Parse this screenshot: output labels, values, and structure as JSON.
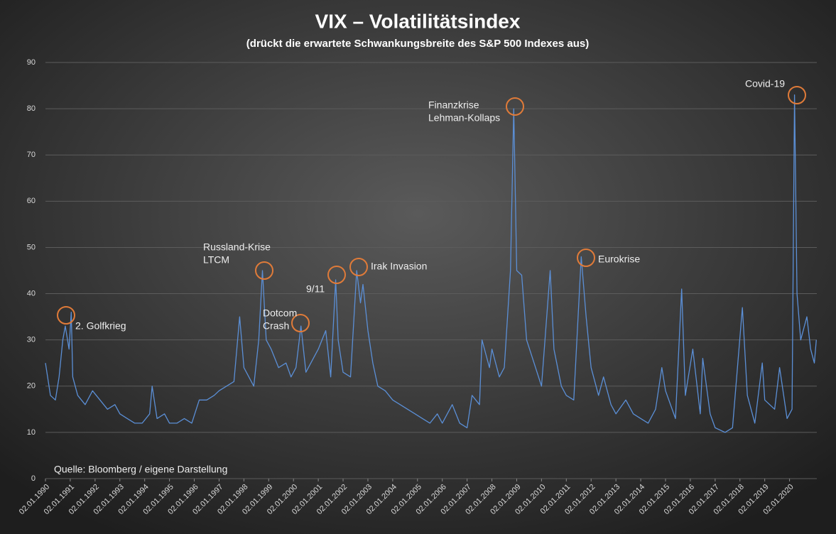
{
  "chart_data": {
    "type": "line",
    "title": "VIX – Volatilitätsindex",
    "subtitle": "(drückt die erwartete Schwankungsbreite des S&P 500 Indexes aus)",
    "source": "Quelle: Bloomberg / eigene Darstellung",
    "color": "#5b8fd6",
    "grid": true,
    "ylim": [
      0,
      90
    ],
    "yticks": [
      0,
      10,
      20,
      30,
      40,
      50,
      60,
      70,
      80,
      90
    ],
    "xlim": [
      1990,
      2021.1
    ],
    "xticks": [
      {
        "value": 1990,
        "label": "02.01.1990"
      },
      {
        "value": 1991,
        "label": "02.01.1991"
      },
      {
        "value": 1992,
        "label": "02.01.1992"
      },
      {
        "value": 1993,
        "label": "02.01.1993"
      },
      {
        "value": 1994,
        "label": "02.01.1994"
      },
      {
        "value": 1995,
        "label": "02.01.1995"
      },
      {
        "value": 1996,
        "label": "02.01.1996"
      },
      {
        "value": 1997,
        "label": "02.01.1997"
      },
      {
        "value": 1998,
        "label": "02.01.1998"
      },
      {
        "value": 1999,
        "label": "02.01.1999"
      },
      {
        "value": 2000,
        "label": "02.01.2000"
      },
      {
        "value": 2001,
        "label": "02.01.2001"
      },
      {
        "value": 2002,
        "label": "02.01.2002"
      },
      {
        "value": 2003,
        "label": "02.01.2003"
      },
      {
        "value": 2004,
        "label": "02.01.2004"
      },
      {
        "value": 2005,
        "label": "02.01.2005"
      },
      {
        "value": 2006,
        "label": "02.01.2006"
      },
      {
        "value": 2007,
        "label": "02.01.2007"
      },
      {
        "value": 2008,
        "label": "02.01.2008"
      },
      {
        "value": 2009,
        "label": "02.01.2009"
      },
      {
        "value": 2010,
        "label": "02.01.2010"
      },
      {
        "value": 2011,
        "label": "02.01.2011"
      },
      {
        "value": 2012,
        "label": "02.01.2012"
      },
      {
        "value": 2013,
        "label": "02.01.2013"
      },
      {
        "value": 2014,
        "label": "02.01.2014"
      },
      {
        "value": 2015,
        "label": "02.01.2015"
      },
      {
        "value": 2016,
        "label": "02.01.2016"
      },
      {
        "value": 2017,
        "label": "02.01.2017"
      },
      {
        "value": 2018,
        "label": "02.01.2018"
      },
      {
        "value": 2019,
        "label": "02.01.2019"
      },
      {
        "value": 2020,
        "label": "02.01.2020"
      }
    ],
    "x": [
      1990.0,
      1990.2,
      1990.4,
      1990.55,
      1990.7,
      1990.8,
      1990.95,
      1991.04,
      1991.1,
      1991.3,
      1991.6,
      1991.9,
      1992.2,
      1992.5,
      1992.8,
      1993.0,
      1993.3,
      1993.6,
      1993.9,
      1994.2,
      1994.3,
      1994.5,
      1994.8,
      1995.0,
      1995.3,
      1995.6,
      1995.9,
      1996.2,
      1996.5,
      1996.8,
      1997.0,
      1997.3,
      1997.6,
      1997.83,
      1998.0,
      1998.4,
      1998.6,
      1998.75,
      1998.9,
      1999.1,
      1999.4,
      1999.7,
      1999.9,
      2000.1,
      2000.3,
      2000.5,
      2000.8,
      2001.0,
      2001.3,
      2001.5,
      2001.7,
      2001.8,
      2002.0,
      2002.3,
      2002.55,
      2002.7,
      2002.8,
      2003.0,
      2003.2,
      2003.4,
      2003.7,
      2004.0,
      2004.3,
      2004.6,
      2004.9,
      2005.2,
      2005.5,
      2005.8,
      2006.0,
      2006.4,
      2006.7,
      2007.0,
      2007.2,
      2007.5,
      2007.6,
      2007.9,
      2008.0,
      2008.3,
      2008.5,
      2008.75,
      2008.88,
      2009.0,
      2009.2,
      2009.4,
      2009.7,
      2010.0,
      2010.35,
      2010.5,
      2010.8,
      2011.0,
      2011.3,
      2011.6,
      2011.8,
      2012.0,
      2012.3,
      2012.5,
      2012.8,
      2013.0,
      2013.4,
      2013.7,
      2014.0,
      2014.3,
      2014.6,
      2014.85,
      2015.0,
      2015.4,
      2015.65,
      2015.8,
      2016.1,
      2016.4,
      2016.5,
      2016.8,
      2017.0,
      2017.4,
      2017.7,
      2018.1,
      2018.3,
      2018.6,
      2018.9,
      2019.0,
      2019.4,
      2019.6,
      2019.9,
      2020.1,
      2020.2,
      2020.3,
      2020.45,
      2020.7,
      2020.85,
      2021.0,
      2021.08
    ],
    "values": [
      25,
      18,
      17,
      22,
      30,
      33,
      28,
      36,
      22,
      18,
      16,
      19,
      17,
      15,
      16,
      14,
      13,
      12,
      12,
      14,
      20,
      13,
      14,
      12,
      12,
      13,
      12,
      17,
      17,
      18,
      19,
      20,
      21,
      35,
      24,
      20,
      30,
      45,
      30,
      28,
      24,
      25,
      22,
      24,
      33,
      23,
      26,
      28,
      32,
      22,
      43,
      30,
      23,
      22,
      45,
      38,
      42,
      32,
      25,
      20,
      19,
      17,
      16,
      15,
      14,
      13,
      12,
      14,
      12,
      16,
      12,
      11,
      18,
      16,
      30,
      24,
      28,
      22,
      24,
      45,
      80,
      45,
      44,
      30,
      25,
      20,
      45,
      28,
      20,
      18,
      17,
      48,
      35,
      24,
      18,
      22,
      16,
      14,
      17,
      14,
      13,
      12,
      15,
      24,
      19,
      13,
      41,
      18,
      28,
      14,
      26,
      14,
      11,
      10,
      11,
      37,
      18,
      12,
      25,
      17,
      15,
      24,
      13,
      15,
      83,
      40,
      30,
      35,
      28,
      25,
      30
    ],
    "annotations": [
      [
        "2. Golfkrieg"
      ],
      [
        "Russland-Krise",
        "LTCM"
      ],
      [
        "Dotcom",
        "Crash"
      ],
      [
        "9/11"
      ],
      [
        "Irak Invasion"
      ],
      [
        "Finanzkrise",
        "Lehman-Kollaps"
      ],
      [
        "Eurokrise"
      ],
      [
        "Covid-19"
      ]
    ]
  }
}
